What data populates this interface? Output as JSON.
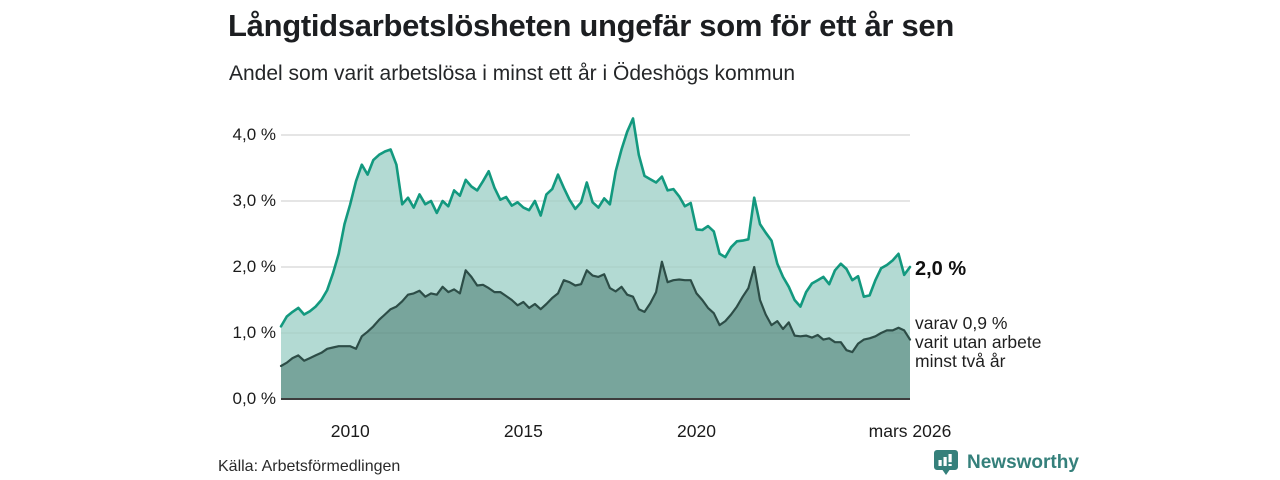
{
  "header": {
    "title": "Långtidsarbetslösheten ungefär som för ett år sen",
    "subtitle": "Andel som varit arbetslösa i minst ett år i Ödeshögs kommun"
  },
  "chart_data": {
    "type": "area",
    "title": "Långtidsarbetslösheten ungefär som för ett år sen",
    "subtitle": "Andel som varit arbetslösa i minst ett år i Ödeshögs kommun",
    "unit": "%",
    "x_start_year": 2008.0,
    "x_end_year": 2026.1667,
    "x_step_years": 0.1666667,
    "ylim": [
      0,
      4.4
    ],
    "grid": true,
    "series": [
      {
        "name": "Andel som varit arbetslösa i minst ett år",
        "line_color": "#13997f",
        "fill_color": "#b3dad3",
        "line_width": 2.6,
        "values": [
          1.1,
          1.25,
          1.32,
          1.38,
          1.28,
          1.33,
          1.4,
          1.5,
          1.65,
          1.9,
          2.2,
          2.65,
          2.95,
          3.3,
          3.55,
          3.4,
          3.62,
          3.7,
          3.75,
          3.78,
          3.55,
          2.95,
          3.05,
          2.9,
          3.1,
          2.95,
          3.0,
          2.82,
          3.0,
          2.92,
          3.16,
          3.08,
          3.32,
          3.22,
          3.16,
          3.3,
          3.45,
          3.2,
          3.02,
          3.06,
          2.93,
          2.98,
          2.9,
          2.86,
          3.0,
          2.78,
          3.1,
          3.18,
          3.4,
          3.2,
          3.02,
          2.88,
          2.98,
          3.28,
          2.98,
          2.9,
          3.04,
          2.95,
          3.45,
          3.78,
          4.05,
          4.25,
          3.7,
          3.38,
          3.33,
          3.28,
          3.37,
          3.16,
          3.18,
          3.07,
          2.92,
          2.97,
          2.57,
          2.56,
          2.62,
          2.54,
          2.2,
          2.15,
          2.3,
          2.39,
          2.4,
          2.42,
          3.05,
          2.65,
          2.52,
          2.4,
          2.05,
          1.85,
          1.7,
          1.5,
          1.4,
          1.62,
          1.75,
          1.8,
          1.85,
          1.74,
          1.95,
          2.05,
          1.97,
          1.8,
          1.86,
          1.55,
          1.57,
          1.8,
          1.98,
          2.03,
          2.1,
          2.2,
          1.88,
          2.0
        ]
      },
      {
        "name": "varav utan arbete minst två år",
        "line_color": "#2d4d47",
        "fill_color": "#78a59c",
        "line_width": 2.2,
        "values": [
          0.5,
          0.55,
          0.62,
          0.66,
          0.58,
          0.62,
          0.66,
          0.7,
          0.76,
          0.78,
          0.8,
          0.8,
          0.8,
          0.76,
          0.95,
          1.02,
          1.1,
          1.2,
          1.28,
          1.36,
          1.4,
          1.48,
          1.58,
          1.6,
          1.64,
          1.55,
          1.6,
          1.58,
          1.7,
          1.62,
          1.66,
          1.6,
          1.95,
          1.85,
          1.72,
          1.73,
          1.68,
          1.62,
          1.62,
          1.56,
          1.5,
          1.42,
          1.47,
          1.38,
          1.44,
          1.36,
          1.44,
          1.53,
          1.6,
          1.8,
          1.77,
          1.72,
          1.74,
          1.95,
          1.87,
          1.85,
          1.89,
          1.68,
          1.63,
          1.7,
          1.58,
          1.55,
          1.36,
          1.32,
          1.45,
          1.62,
          2.08,
          1.77,
          1.8,
          1.81,
          1.8,
          1.8,
          1.6,
          1.5,
          1.38,
          1.3,
          1.12,
          1.18,
          1.28,
          1.4,
          1.55,
          1.68,
          2.0,
          1.5,
          1.28,
          1.12,
          1.18,
          1.06,
          1.16,
          0.96,
          0.95,
          0.96,
          0.93,
          0.97,
          0.9,
          0.92,
          0.86,
          0.86,
          0.74,
          0.71,
          0.84,
          0.9,
          0.92,
          0.95,
          1.0,
          1.04,
          1.04,
          1.08,
          1.04,
          0.9
        ]
      }
    ],
    "yticks": [
      {
        "value": 0.0,
        "label": "0,0 %"
      },
      {
        "value": 1.0,
        "label": "1,0 %"
      },
      {
        "value": 2.0,
        "label": "2,0 %"
      },
      {
        "value": 3.0,
        "label": "3,0 %"
      },
      {
        "value": 4.0,
        "label": "4,0 %"
      }
    ],
    "xticks": [
      {
        "year": 2010.0,
        "label": "2010"
      },
      {
        "year": 2015.0,
        "label": "2015"
      },
      {
        "year": 2020.0,
        "label": "2020"
      },
      {
        "year": 2026.1667,
        "label": "mars 2026"
      }
    ],
    "end_labels": {
      "primary": "2,0 %",
      "secondary_lines": [
        "varav 0,9 %",
        "varit utan arbete",
        "minst två år"
      ]
    },
    "grid_color": "#d8d8d8",
    "baseline_color": "#3d3d3d"
  },
  "footer": {
    "source": "Källa: Arbetsförmedlingen",
    "brand": "Newsworthy",
    "brand_color": "#35807b",
    "brand_logo_icon": "bar-chart-speech-bubble-icon"
  }
}
